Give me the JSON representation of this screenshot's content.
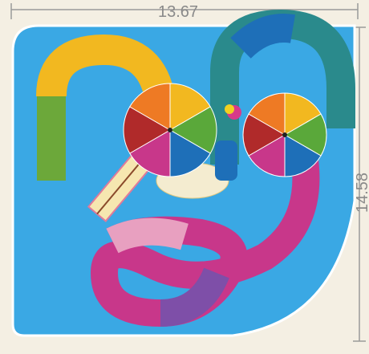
{
  "dimensions": {
    "width_label": "13.67",
    "height_label": "14.58"
  }
}
